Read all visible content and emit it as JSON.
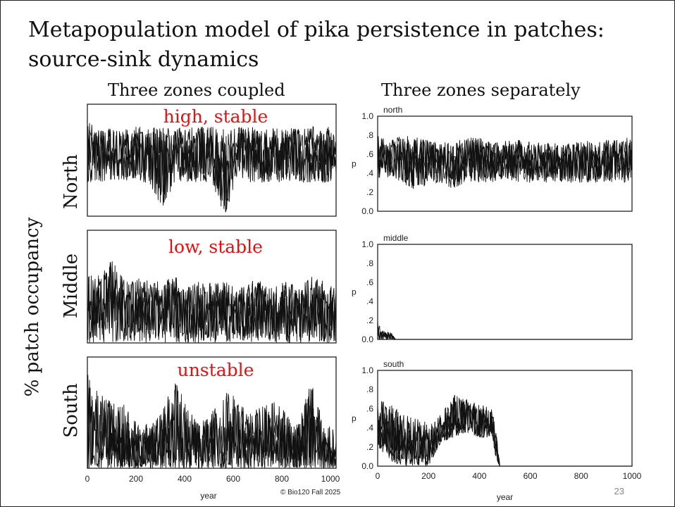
{
  "title": "Metapopulation model of pika persistence in patches: source-sink dynamics",
  "left_header": "Three zones coupled",
  "right_header": "Three zones separately",
  "y_axis_label": "% patch occupancy",
  "row_labels": [
    "North",
    "Middle",
    "South"
  ],
  "annotations": [
    "high, stable",
    "low, stable",
    "unstable"
  ],
  "annotation_color": "#e8100f",
  "footer": "© Bio120 Fall 2025",
  "page_number": "23",
  "chart_data": [
    {
      "type": "line",
      "panel": "coupled-north",
      "xlim": [
        0,
        1000
      ],
      "ylim": [
        0,
        1
      ],
      "x": [
        0,
        50,
        100,
        150,
        200,
        250,
        300,
        350,
        400,
        450,
        500,
        550,
        600,
        650,
        700,
        750,
        800,
        850,
        900,
        950,
        1000
      ],
      "upper": [
        0.85,
        0.8,
        0.8,
        0.8,
        0.8,
        0.8,
        0.8,
        0.78,
        0.8,
        0.8,
        0.8,
        0.78,
        0.8,
        0.8,
        0.8,
        0.8,
        0.8,
        0.8,
        0.8,
        0.8,
        0.8
      ],
      "lower": [
        0.3,
        0.3,
        0.3,
        0.3,
        0.3,
        0.3,
        0.05,
        0.3,
        0.3,
        0.3,
        0.3,
        0.0,
        0.3,
        0.3,
        0.3,
        0.3,
        0.3,
        0.3,
        0.3,
        0.3,
        0.3
      ]
    },
    {
      "type": "line",
      "panel": "coupled-middle",
      "xlim": [
        0,
        1000
      ],
      "ylim": [
        0,
        1
      ],
      "x": [
        0,
        50,
        100,
        150,
        200,
        250,
        300,
        350,
        400,
        450,
        500,
        550,
        600,
        650,
        700,
        750,
        800,
        850,
        900,
        950,
        1000
      ],
      "upper": [
        0.6,
        0.6,
        0.75,
        0.55,
        0.6,
        0.55,
        0.55,
        0.6,
        0.5,
        0.55,
        0.55,
        0.55,
        0.5,
        0.55,
        0.55,
        0.5,
        0.55,
        0.5,
        0.6,
        0.55,
        0.5
      ],
      "lower": [
        0,
        0,
        0,
        0,
        0,
        0,
        0,
        0,
        0,
        0,
        0,
        0,
        0,
        0,
        0,
        0,
        0,
        0,
        0,
        0,
        0
      ]
    },
    {
      "type": "line",
      "panel": "coupled-south",
      "xlim": [
        0,
        1000
      ],
      "ylim": [
        0,
        1
      ],
      "x": [
        0,
        50,
        100,
        150,
        200,
        250,
        300,
        350,
        400,
        450,
        500,
        550,
        600,
        650,
        700,
        750,
        800,
        850,
        900,
        950,
        1000
      ],
      "upper": [
        0.9,
        0.7,
        0.6,
        0.6,
        0.4,
        0.4,
        0.5,
        0.8,
        0.6,
        0.4,
        0.5,
        0.7,
        0.65,
        0.5,
        0.55,
        0.6,
        0.5,
        0.4,
        0.85,
        0.4,
        0.35
      ],
      "lower": [
        0,
        0,
        0,
        0,
        0,
        0,
        0,
        0,
        0,
        0,
        0,
        0,
        0,
        0,
        0,
        0,
        0,
        0,
        0,
        0,
        0
      ]
    },
    {
      "type": "line",
      "panel": "separate-north",
      "title": "north",
      "ylabel": "p",
      "xlim": [
        0,
        1000
      ],
      "ylim": [
        0,
        1
      ],
      "yticks": [
        "0.0",
        ".2",
        ".4",
        ".6",
        ".8",
        "1.0"
      ],
      "x": [
        0,
        50,
        100,
        150,
        200,
        250,
        300,
        350,
        400,
        450,
        500,
        550,
        600,
        650,
        700,
        750,
        800,
        850,
        900,
        950,
        1000
      ],
      "upper": [
        0.8,
        0.75,
        0.8,
        0.78,
        0.75,
        0.72,
        0.75,
        0.78,
        0.78,
        0.72,
        0.75,
        0.75,
        0.75,
        0.72,
        0.72,
        0.72,
        0.75,
        0.75,
        0.75,
        0.75,
        0.8
      ],
      "lower": [
        0.35,
        0.35,
        0.3,
        0.2,
        0.3,
        0.3,
        0.2,
        0.3,
        0.3,
        0.3,
        0.35,
        0.3,
        0.3,
        0.3,
        0.3,
        0.3,
        0.3,
        0.3,
        0.3,
        0.3,
        0.3
      ]
    },
    {
      "type": "line",
      "panel": "separate-middle",
      "title": "middle",
      "ylabel": "p",
      "xlim": [
        0,
        1000
      ],
      "ylim": [
        0,
        1
      ],
      "yticks": [
        "0.0",
        ".2",
        ".4",
        ".6",
        ".8",
        "1.0"
      ],
      "x": [
        0,
        10,
        20,
        30,
        40,
        50,
        60,
        70,
        1000
      ],
      "upper": [
        0.25,
        0.12,
        0.1,
        0.08,
        0.08,
        0.08,
        0.05,
        0,
        0
      ],
      "lower": [
        0,
        0,
        0,
        0,
        0,
        0,
        0,
        0,
        0
      ]
    },
    {
      "type": "line",
      "panel": "separate-south",
      "title": "south",
      "ylabel": "p",
      "xlabel": "year",
      "xlim": [
        0,
        1000
      ],
      "ylim": [
        0,
        1
      ],
      "yticks": [
        "0.0",
        ".2",
        ".4",
        ".6",
        ".8",
        "1.0"
      ],
      "xticks": [
        "0",
        "200",
        "400",
        "600",
        "800",
        "1000"
      ],
      "x": [
        0,
        50,
        100,
        150,
        200,
        250,
        300,
        350,
        400,
        450,
        470,
        480,
        1000
      ],
      "upper": [
        0.7,
        0.65,
        0.55,
        0.5,
        0.45,
        0.55,
        0.75,
        0.7,
        0.65,
        0.6,
        0.3,
        0,
        0
      ],
      "lower": [
        0.2,
        0.05,
        0,
        0,
        0,
        0.25,
        0.3,
        0.35,
        0.3,
        0.3,
        0,
        0,
        0
      ]
    }
  ],
  "left_xticks": [
    "0",
    "200",
    "400",
    "600",
    "800",
    "1000"
  ],
  "left_xlabel": "year"
}
